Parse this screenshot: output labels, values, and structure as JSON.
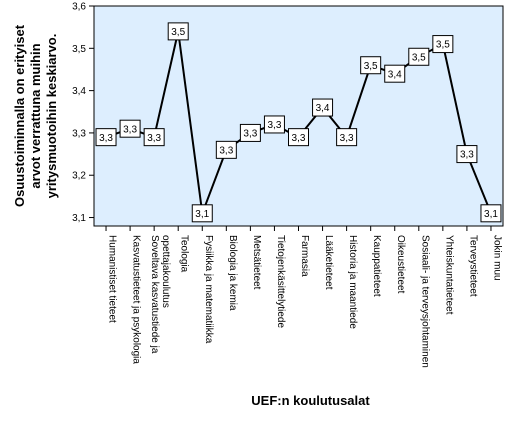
{
  "chart_data": {
    "type": "line",
    "xlabel": "UEF:n koulutusalat",
    "ylabel_lines": [
      "Osuustoiminnalla on erityiset",
      "arvot verrattuna muihin",
      "yritysmuotoihin keskiarvo."
    ],
    "ylim": [
      3.08,
      3.6
    ],
    "yticks": [
      {
        "value": 3.1,
        "label": "3,1"
      },
      {
        "value": 3.2,
        "label": "3,2"
      },
      {
        "value": 3.3,
        "label": "3,3"
      },
      {
        "value": 3.4,
        "label": "3,4"
      },
      {
        "value": 3.5,
        "label": "3,5"
      },
      {
        "value": 3.6,
        "label": "3,6"
      }
    ],
    "grid": false,
    "categories": [
      [
        "Humanistiset tieteet"
      ],
      [
        "Kasvatustieteet ja psykologia"
      ],
      [
        "Soveltava kasvatustiede ja",
        "opettajakoulutus"
      ],
      [
        "Teologia"
      ],
      [
        "Fysiikka ja matematiikka"
      ],
      [
        "Biologia ja kemia"
      ],
      [
        "Metsätieteet"
      ],
      [
        "Tietojenkäsittelytiede"
      ],
      [
        "Farmasia"
      ],
      [
        "Lääketieteet"
      ],
      [
        "Historia ja maantiede"
      ],
      [
        "Kauppatieteet"
      ],
      [
        "Oikeustieteet"
      ],
      [
        "Sosiaali- ja terveysjohtaminen"
      ],
      [
        "Yhteiskuntatieteet"
      ],
      [
        "Terveystieteet"
      ],
      [
        "Jokin muu"
      ]
    ],
    "values": [
      3.29,
      3.31,
      3.29,
      3.54,
      3.11,
      3.26,
      3.3,
      3.32,
      3.29,
      3.36,
      3.29,
      3.46,
      3.44,
      3.48,
      3.51,
      3.25,
      3.11
    ],
    "data_labels": [
      "3,3",
      "3,3",
      "3,3",
      "3,5",
      "3,1",
      "3,3",
      "3,3",
      "3,3",
      "3,3",
      "3,4",
      "3,3",
      "3,5",
      "3,4",
      "3,5",
      "3,5",
      "3,3",
      "3,1"
    ],
    "colors": {
      "plot_background": "#ddeefe",
      "line": "#000000",
      "label_box_fill": "#ffffff",
      "label_box_border": "#000000",
      "axis": "#000000"
    }
  }
}
